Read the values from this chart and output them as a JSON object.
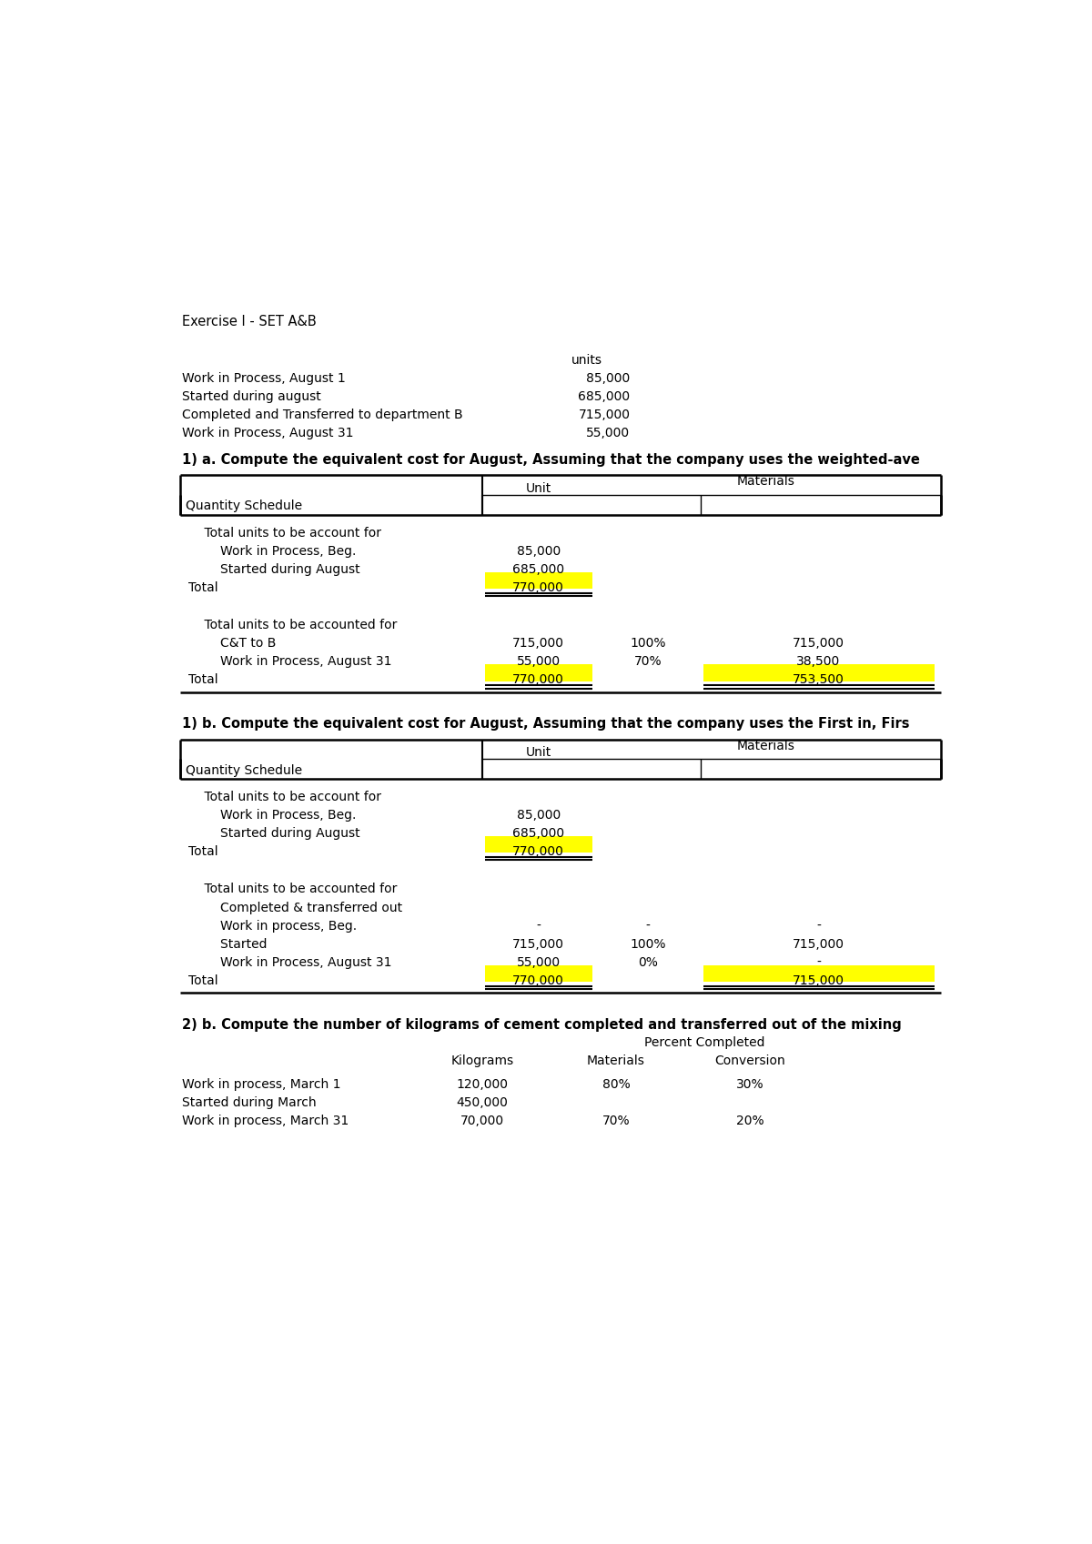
{
  "title": "Exercise I - SET A&B",
  "bg_color": "#ffffff",
  "intro_label": "units",
  "intro_rows": [
    [
      "Work in Process, August 1",
      "85,000"
    ],
    [
      "Started during august",
      "685,000"
    ],
    [
      "Completed and Transferred to department B",
      "715,000"
    ],
    [
      "Work in Process, August 31",
      "55,000"
    ]
  ],
  "section1_title": "1) a. Compute the equivalent cost for August, Assuming that the company uses the weighted-ave",
  "section1_subheader": "Quantity Schedule",
  "section1_rows_top": [
    [
      "    Total units to be account for",
      "",
      "",
      ""
    ],
    [
      "        Work in Process, Beg.",
      "85,000",
      "",
      ""
    ],
    [
      "        Started during August",
      "685,000",
      "",
      ""
    ],
    [
      "Total",
      "770,000",
      "",
      ""
    ]
  ],
  "section1_rows_bottom": [
    [
      "    Total units to be accounted for",
      "",
      "",
      ""
    ],
    [
      "        C&T to B",
      "715,000",
      "100%",
      "715,000"
    ],
    [
      "        Work in Process, August 31",
      "55,000",
      "70%",
      "38,500"
    ],
    [
      "Total",
      "770,000",
      "",
      "753,500"
    ]
  ],
  "section2_title": "1) b. Compute the equivalent cost for August, Assuming that the company uses the First in, Firs",
  "section2_subheader": "Quantity Schedule",
  "section2_rows_top": [
    [
      "    Total units to be account for",
      "",
      "",
      ""
    ],
    [
      "        Work in Process, Beg.",
      "85,000",
      "",
      ""
    ],
    [
      "        Started during August",
      "685,000",
      "",
      ""
    ],
    [
      "Total",
      "770,000",
      "",
      ""
    ]
  ],
  "section2_rows_bottom": [
    [
      "    Total units to be accounted for",
      "",
      "",
      ""
    ],
    [
      "        Completed & transferred out",
      "",
      "",
      ""
    ],
    [
      "        Work in process, Beg.",
      "-",
      "-",
      "-"
    ],
    [
      "        Started",
      "715,000",
      "100%",
      "715,000"
    ],
    [
      "        Work in Process, August 31",
      "55,000",
      "0%",
      "-"
    ],
    [
      "Total",
      "770,000",
      "",
      "715,000"
    ]
  ],
  "section3_title": "2) b. Compute the number of kilograms of cement completed and transferred out of the mixing",
  "section3_rows": [
    [
      "Work in process, March 1",
      "120,000",
      "80%",
      "30%"
    ],
    [
      "Started during March",
      "450,000",
      "",
      ""
    ],
    [
      "Work in process, March 31",
      "70,000",
      "70%",
      "20%"
    ]
  ],
  "yellow_color": "#ffff00",
  "text_color": "#000000"
}
